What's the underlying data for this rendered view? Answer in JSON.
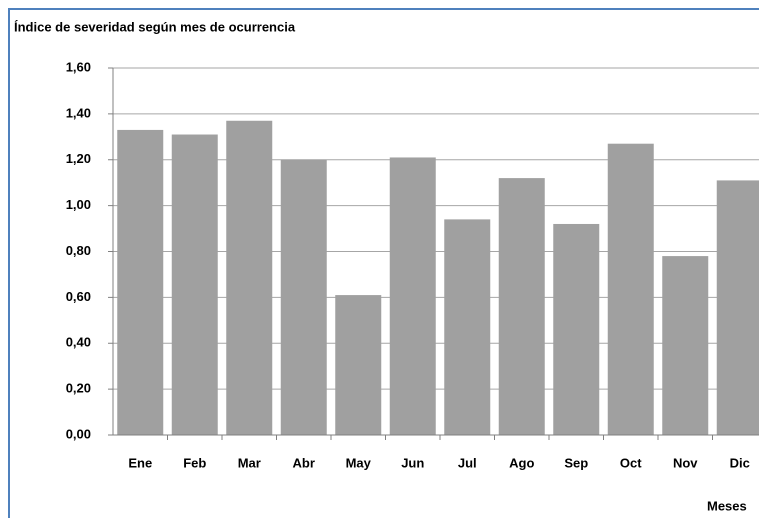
{
  "chart_data": {
    "type": "bar",
    "title": "Índice de severidad según mes de ocurrencia",
    "categories": [
      "Ene",
      "Feb",
      "Mar",
      "Abr",
      "May",
      "Jun",
      "Jul",
      "Ago",
      "Sep",
      "Oct",
      "Nov",
      "Dic"
    ],
    "values": [
      1.33,
      1.31,
      1.37,
      1.2,
      0.61,
      1.21,
      0.94,
      1.12,
      0.92,
      1.27,
      0.78,
      1.11
    ],
    "color": "#a0a0a0",
    "x_label": "Meses",
    "ylim": [
      0,
      1.6
    ],
    "yticks": [
      {
        "value": 0,
        "label": "0,00"
      },
      {
        "value": 0.2,
        "label": "0,20"
      },
      {
        "value": 0.4,
        "label": "0,40"
      },
      {
        "value": 0.6,
        "label": "0,60"
      },
      {
        "value": 0.8,
        "label": "0,80"
      },
      {
        "value": 1,
        "label": "1,00"
      },
      {
        "value": 1.2,
        "label": "1,20"
      },
      {
        "value": 1.4,
        "label": "1,40"
      },
      {
        "value": 1.6,
        "label": "1,60"
      }
    ],
    "grid": true
  }
}
